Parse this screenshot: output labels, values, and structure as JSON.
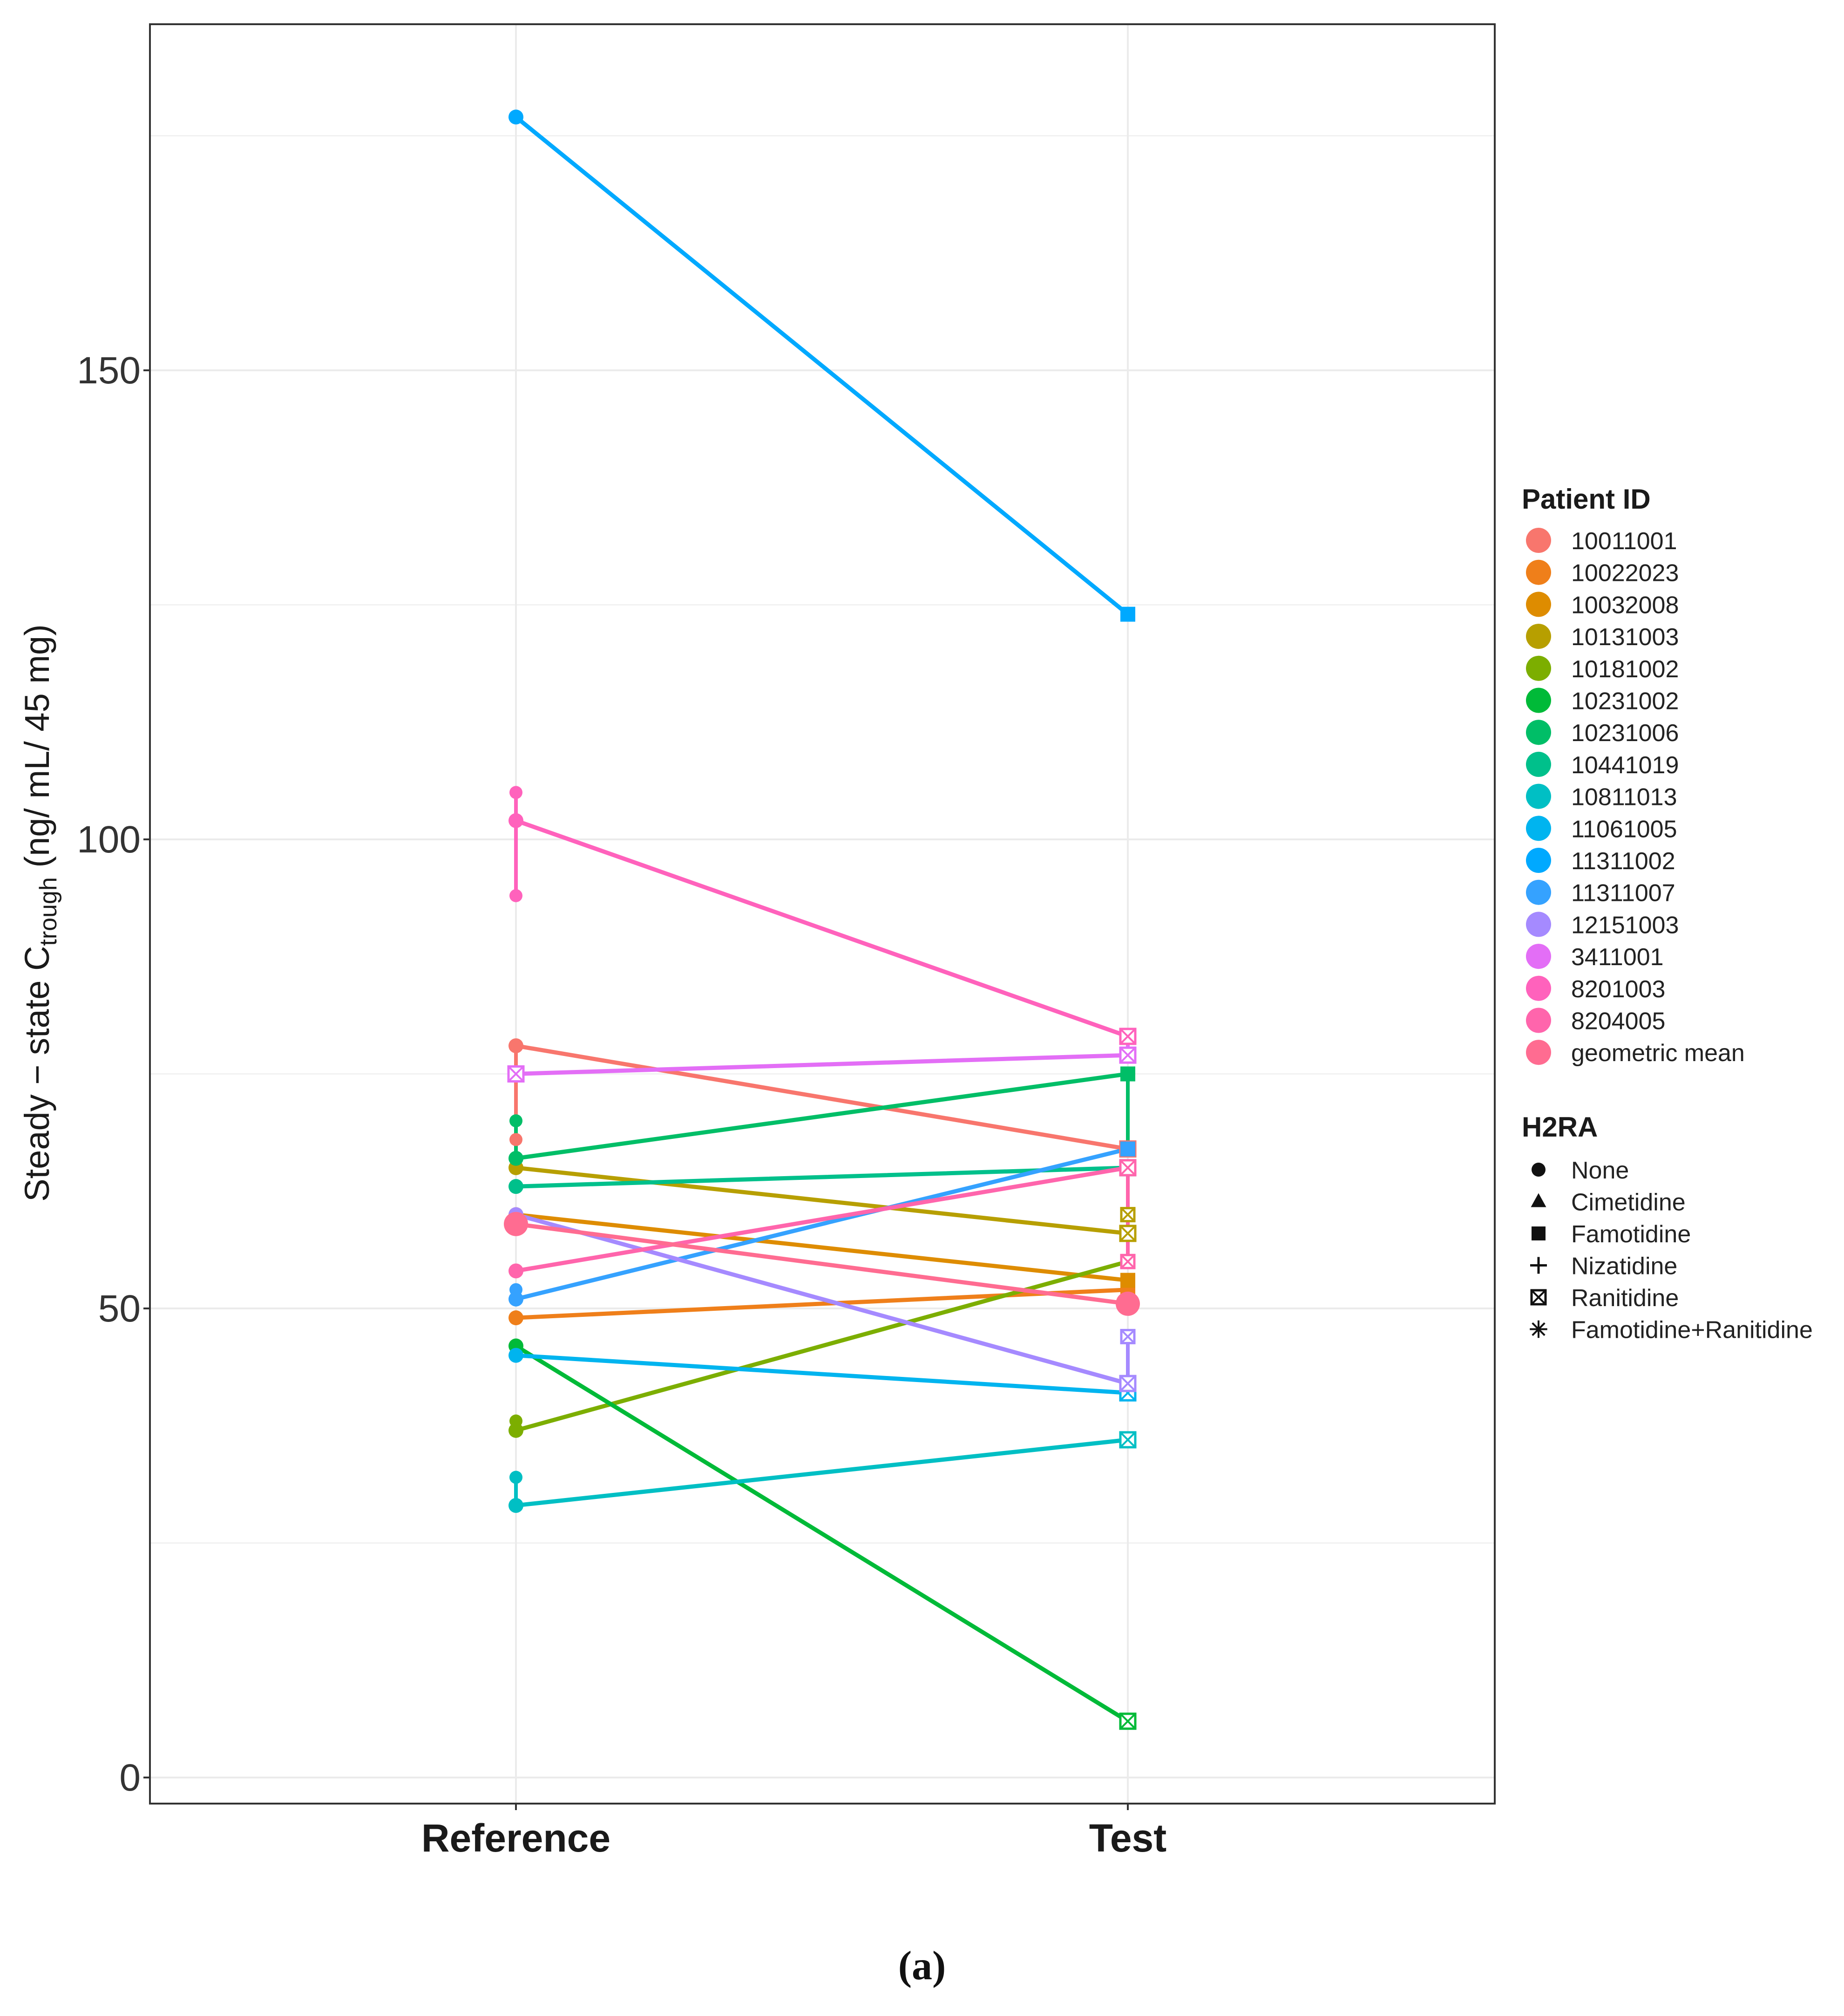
{
  "chart_data": {
    "type": "line",
    "title": "",
    "xlabel": "",
    "ylabel_main": "Steady − state C",
    "ylabel_sub": "trough",
    "ylabel_unit": " (ng/ mL/ 45 mg)",
    "categories": [
      "Reference",
      "Test"
    ],
    "ylim": [
      -2,
      187
    ],
    "yticks": [
      0,
      50,
      100,
      150
    ],
    "ytick_labels": [
      "0",
      "50",
      "100",
      "150"
    ],
    "grid": true,
    "legend_position": "right",
    "color_legend_title": "Patient ID",
    "shape_legend_title": "H2RA",
    "shapes": [
      "None",
      "Cimetidine",
      "Famotidine",
      "Nizatidine",
      "Ranitidine",
      "Famotidine+Ranitidine"
    ],
    "series": [
      {
        "name": "10011001",
        "color": "#F8766D",
        "values": [
          78,
          67
        ],
        "ref_extra": [
          68
        ],
        "test_extra": [],
        "ref_shape": "None",
        "test_shape": "Ranitidine"
      },
      {
        "name": "10022023",
        "color": "#EF7F1A",
        "values": [
          49,
          52
        ],
        "ref_extra": [],
        "test_extra": [],
        "ref_shape": "None",
        "test_shape": "Famotidine"
      },
      {
        "name": "10032008",
        "color": "#DE8C00",
        "values": [
          60,
          53
        ],
        "ref_extra": [],
        "test_extra": [],
        "ref_shape": "None",
        "test_shape": "Famotidine"
      },
      {
        "name": "10131003",
        "color": "#B79F00",
        "values": [
          65,
          58
        ],
        "ref_extra": [],
        "test_extra": [
          60
        ],
        "ref_shape": "None",
        "test_shape": "Ranitidine"
      },
      {
        "name": "10181002",
        "color": "#7CAE00",
        "values": [
          37,
          55
        ],
        "ref_extra": [
          38
        ],
        "test_extra": [],
        "ref_shape": "None",
        "test_shape": "Famotidine"
      },
      {
        "name": "10231002",
        "color": "#00BA38",
        "values": [
          46,
          6
        ],
        "ref_extra": [],
        "test_extra": [],
        "ref_shape": "None",
        "test_shape": "Ranitidine"
      },
      {
        "name": "10231006",
        "color": "#00BE67",
        "values": [
          66,
          75
        ],
        "ref_extra": [
          70
        ],
        "test_extra": [
          67
        ],
        "ref_shape": "None",
        "test_shape": "Famotidine"
      },
      {
        "name": "10441019",
        "color": "#00C08B",
        "values": [
          63,
          65
        ],
        "ref_extra": [],
        "test_extra": [],
        "ref_shape": "None",
        "test_shape": "Ranitidine"
      },
      {
        "name": "10811013",
        "color": "#00BFC4",
        "values": [
          29,
          36
        ],
        "ref_extra": [
          32
        ],
        "test_extra": [],
        "ref_shape": "None",
        "test_shape": "Ranitidine"
      },
      {
        "name": "11061005",
        "color": "#00B4EF",
        "values": [
          45,
          41
        ],
        "ref_extra": [],
        "test_extra": [],
        "ref_shape": "None",
        "test_shape": "Ranitidine"
      },
      {
        "name": "11311002",
        "color": "#00A9FF",
        "values": [
          177,
          124
        ],
        "ref_extra": [],
        "test_extra": [],
        "ref_shape": "None",
        "test_shape": "Famotidine"
      },
      {
        "name": "11311007",
        "color": "#35A2FF",
        "values": [
          51,
          67
        ],
        "ref_extra": [
          52
        ],
        "test_extra": [],
        "ref_shape": "None",
        "test_shape": "Famotidine"
      },
      {
        "name": "12151003",
        "color": "#A58AFF",
        "values": [
          60,
          42
        ],
        "ref_extra": [],
        "test_extra": [
          47
        ],
        "ref_shape": "None",
        "test_shape": "Ranitidine"
      },
      {
        "name": "3411001",
        "color": "#E36EF6",
        "values": [
          75,
          77
        ],
        "ref_extra": [],
        "test_extra": [
          79
        ],
        "ref_shape": "Ranitidine",
        "test_shape": "Ranitidine"
      },
      {
        "name": "8201003",
        "color": "#FF62BC",
        "values": [
          102,
          79
        ],
        "ref_extra": [
          105,
          94
        ],
        "test_extra": [],
        "ref_shape": "None",
        "test_shape": "Ranitidine"
      },
      {
        "name": "8204005",
        "color": "#FF65AC",
        "values": [
          54,
          65
        ],
        "ref_extra": [],
        "test_extra": [
          55
        ],
        "ref_shape": "None",
        "test_shape": "Ranitidine"
      },
      {
        "name": "geometric mean",
        "color": "#FF6C91",
        "values": [
          59,
          50.5
        ],
        "ref_extra": [],
        "test_extra": [],
        "ref_shape": "None",
        "test_shape": "None",
        "is_mean": true
      }
    ]
  },
  "caption": "(a)",
  "colors": {
    "grid": "#ebebeb",
    "frame": "#333333",
    "background": "#ffffff"
  }
}
